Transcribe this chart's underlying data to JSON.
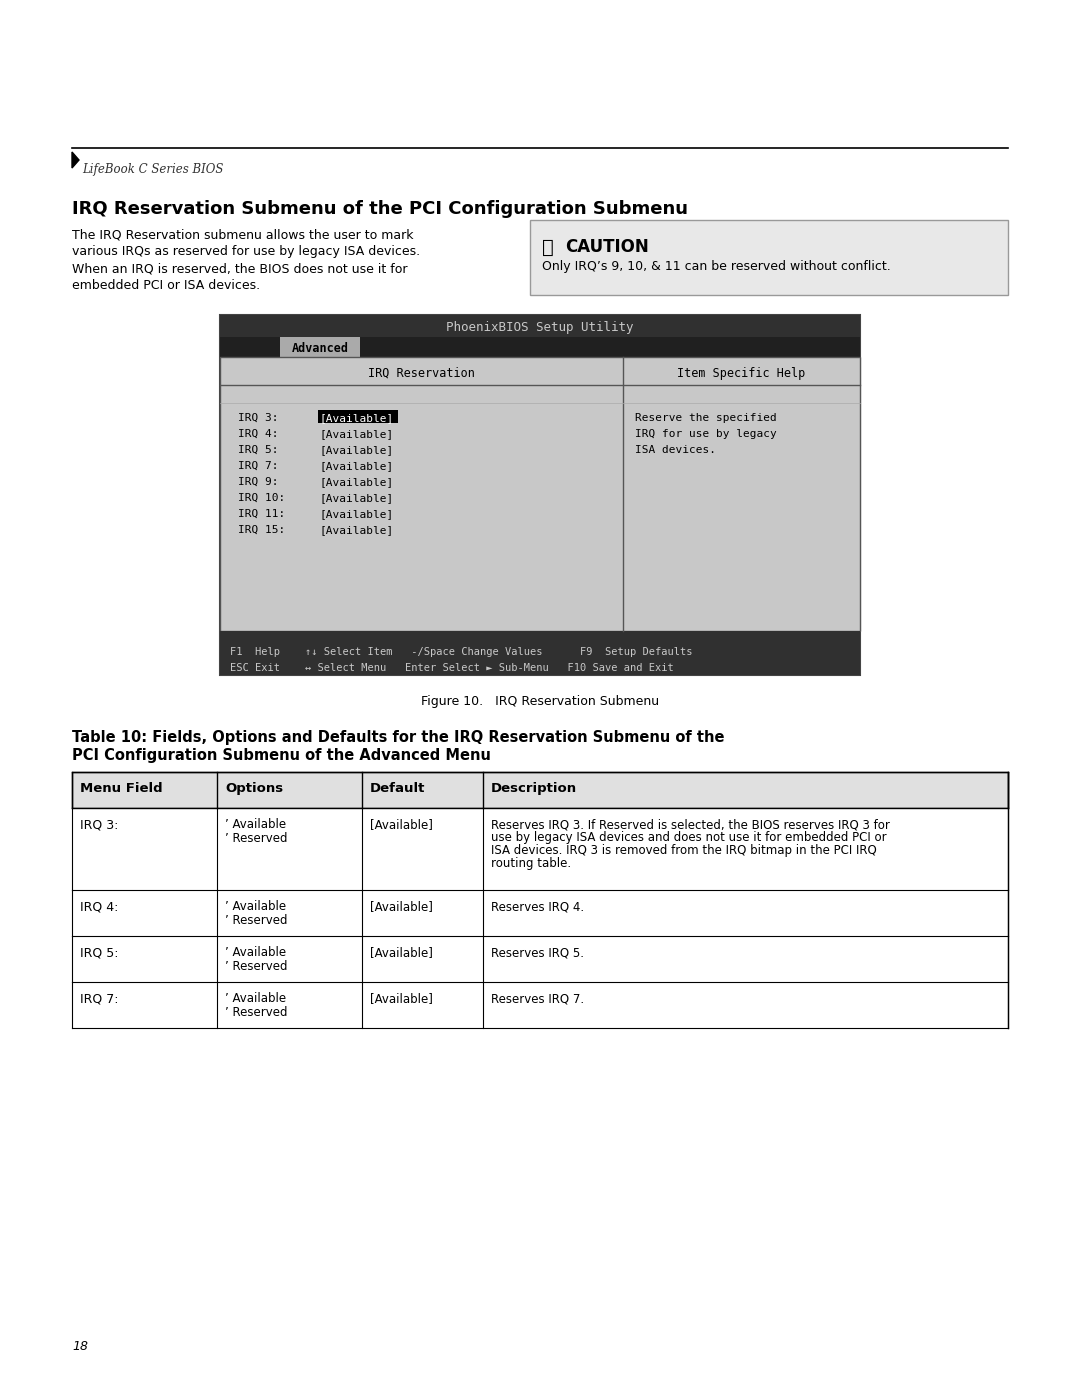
{
  "page_bg": "#ffffff",
  "header_line_color": "#000000",
  "header_text": "LifeBook C Series BIOS",
  "section_title": "IRQ Reservation Submenu of the PCI Configuration Submenu",
  "body_text": "The IRQ Reservation submenu allows the user to mark\nvarious IRQs as reserved for use by legacy ISA devices.\nWhen an IRQ is reserved, the BIOS does not use it for\nembedded PCI or ISA devices.",
  "caution_title": "CAUTION",
  "caution_text": "Only IRQ’s 9, 10, & 11 can be reserved without conflict.",
  "caution_bg": "#e8e8e8",
  "bios_title": "PhoenixBIOS Setup Utility",
  "bios_tab": "Advanced",
  "bios_section_left": "IRQ Reservation",
  "bios_section_right": "Item Specific Help",
  "bios_items": [
    [
      "IRQ 3:",
      "[Available]",
      true
    ],
    [
      "IRQ 4:",
      "[Available]",
      false
    ],
    [
      "IRQ 5:",
      "[Available]",
      false
    ],
    [
      "IRQ 7:",
      "[Available]",
      false
    ],
    [
      "IRQ 9:",
      "[Available]",
      false
    ],
    [
      "IRQ 10:",
      "[Available]",
      false
    ],
    [
      "IRQ 11:",
      "[Available]",
      false
    ],
    [
      "IRQ 15:",
      "[Available]",
      false
    ]
  ],
  "bios_help_text": "Reserve the specified\nIRQ for use by legacy\nISA devices.",
  "bios_footer1": "F1  Help    ↑↓ Select Item   -/Space Change Values      F9  Setup Defaults",
  "bios_footer2": "ESC Exit    ↔ Select Menu   Enter Select ► Sub-Menu   F10 Save and Exit",
  "figure_caption": "Figure 10.   IRQ Reservation Submenu",
  "table_title1": "Table 10: Fields, Options and Defaults for the IRQ Reservation Submenu of the",
  "table_title2": "PCI Configuration Submenu of the Advanced Menu",
  "table_headers": [
    "Menu Field",
    "Options",
    "Default",
    "Description"
  ],
  "table_rows": [
    {
      "field": "IRQ 3:",
      "options": "’ Available\n’ Reserved",
      "default": "[Available]",
      "description": "Reserves IRQ 3. If Reserved is selected, the BIOS reserves IRQ 3 for\nuse by legacy ISA devices and does not use it for embedded PCI or\nISA devices. IRQ 3 is removed from the IRQ bitmap in the PCI IRQ\nrouting table."
    },
    {
      "field": "IRQ 4:",
      "options": "’ Available\n’ Reserved",
      "default": "[Available]",
      "description": "Reserves IRQ 4."
    },
    {
      "field": "IRQ 5:",
      "options": "’ Available\n’ Reserved",
      "default": "[Available]",
      "description": "Reserves IRQ 5."
    },
    {
      "field": "IRQ 7:",
      "options": "’ Available\n’ Reserved",
      "default": "[Available]",
      "description": "Reserves IRQ 7."
    }
  ],
  "page_number": "18",
  "bios_bg": "#c0c0c0",
  "bios_dark": "#303030",
  "bios_selected_bg": "#000000",
  "bios_selected_fg": "#ffffff",
  "bios_inner_bg": "#d0d0d0"
}
